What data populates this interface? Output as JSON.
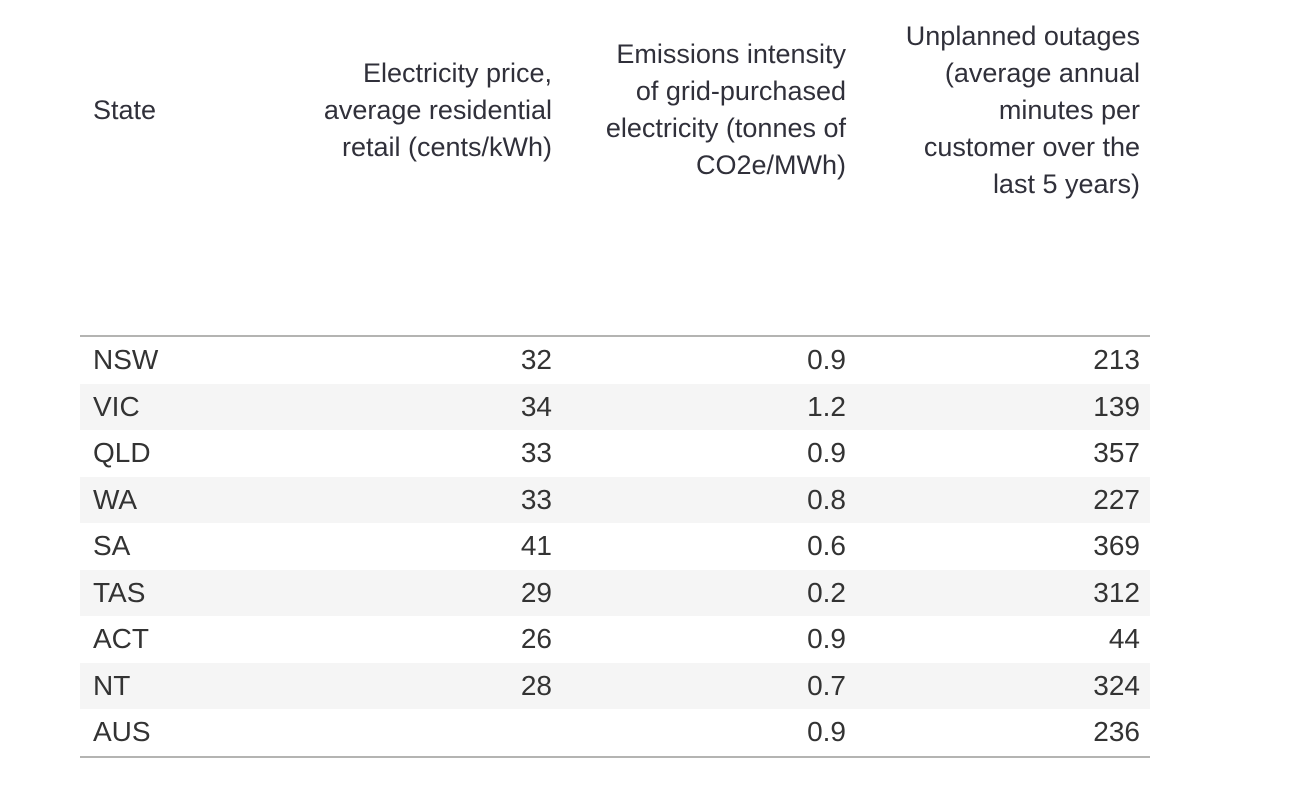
{
  "table": {
    "columns": [
      {
        "id": "state",
        "align": "left",
        "lines": [
          "State"
        ]
      },
      {
        "id": "price",
        "align": "right",
        "lines": [
          "Electricity price,",
          "average residential",
          "retail (cents/kWh)"
        ]
      },
      {
        "id": "emissions",
        "align": "right",
        "lines": [
          "Emissions intensity",
          "of grid-purchased",
          "electricity (tonnes of",
          "CO2e/MWh)"
        ]
      },
      {
        "id": "outages",
        "align": "right",
        "lines": [
          "Unplanned outages",
          "(average annual",
          "minutes per",
          "customer over the",
          "last 5 years)"
        ]
      }
    ],
    "rows": [
      {
        "state": "NSW",
        "price": "32",
        "emissions": "0.9",
        "outages": "213"
      },
      {
        "state": "VIC",
        "price": "34",
        "emissions": "1.2",
        "outages": "139"
      },
      {
        "state": "QLD",
        "price": "33",
        "emissions": "0.9",
        "outages": "357"
      },
      {
        "state": "WA",
        "price": "33",
        "emissions": "0.8",
        "outages": "227"
      },
      {
        "state": "SA",
        "price": "41",
        "emissions": "0.6",
        "outages": "369"
      },
      {
        "state": "TAS",
        "price": "29",
        "emissions": "0.2",
        "outages": "312"
      },
      {
        "state": "ACT",
        "price": "26",
        "emissions": "0.9",
        "outages": "44"
      },
      {
        "state": "NT",
        "price": "28",
        "emissions": "0.7",
        "outages": "324"
      },
      {
        "state": "AUS",
        "price": "",
        "emissions": "0.9",
        "outages": "236"
      }
    ],
    "colors": {
      "text": "#333333",
      "stripe": "#f5f5f5",
      "border": "#b4b4b2",
      "background": "#ffffff"
    }
  },
  "chart_data": {
    "type": "table",
    "title": "",
    "columns": [
      "State",
      "Electricity price, average residential retail (cents/kWh)",
      "Emissions intensity of grid-purchased electricity (tonnes of CO2e/MWh)",
      "Unplanned outages (average annual minutes per customer over the last 5 years)"
    ],
    "rows": [
      [
        "NSW",
        32,
        0.9,
        213
      ],
      [
        "VIC",
        34,
        1.2,
        139
      ],
      [
        "QLD",
        33,
        0.9,
        357
      ],
      [
        "WA",
        33,
        0.8,
        227
      ],
      [
        "SA",
        41,
        0.6,
        369
      ],
      [
        "TAS",
        29,
        0.2,
        312
      ],
      [
        "ACT",
        26,
        0.9,
        44
      ],
      [
        "NT",
        28,
        0.7,
        324
      ],
      [
        "AUS",
        null,
        0.9,
        236
      ]
    ],
    "layout_hints": {
      "striped_rows": true,
      "header_alignment": [
        "left",
        "right",
        "right",
        "right"
      ],
      "value_alignment": [
        "left",
        "right",
        "right",
        "right"
      ]
    }
  }
}
